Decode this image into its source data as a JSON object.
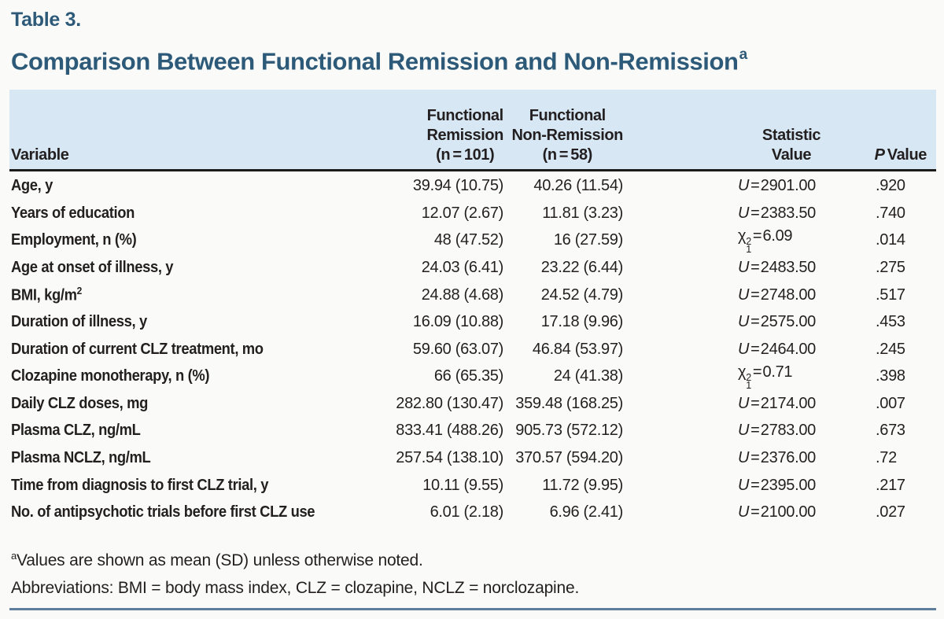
{
  "page": {
    "eyebrow": "Table 3.",
    "title": "Comparison Between Functional Remission and Non-Remission",
    "title_sup": "a"
  },
  "table": {
    "headers": {
      "variable": "Variable",
      "remission": "Functional\nRemission\n(n = 101)",
      "non_remission": "Functional\nNon-Remission\n(n = 58)",
      "statistic": "Statistic\nValue",
      "p_italic": "P",
      "p_rest": " Value"
    },
    "rows": [
      {
        "label": "Age, y",
        "label_sup": "",
        "rem": "39.94 (10.75)",
        "nonrem": "40.26 (11.54)",
        "stat": {
          "sym": "U",
          "italic": true,
          "sup": "",
          "sub": "",
          "rest": "= 2901.00"
        },
        "p": ".920"
      },
      {
        "label": "Years of education",
        "label_sup": "",
        "rem": "12.07 (2.67)",
        "nonrem": "11.81 (3.23)",
        "stat": {
          "sym": "U",
          "italic": true,
          "sup": "",
          "sub": "",
          "rest": "= 2383.50"
        },
        "p": ".740"
      },
      {
        "label": "Employment, n (%)",
        "label_sup": "",
        "rem": "48 (47.52)",
        "nonrem": "16 (27.59)",
        "stat": {
          "sym": "χ",
          "italic": false,
          "sup": "2",
          "sub": "1",
          "rest": "= 6.09"
        },
        "p": ".014"
      },
      {
        "label": "Age at onset of illness, y",
        "label_sup": "",
        "rem": "24.03 (6.41)",
        "nonrem": "23.22 (6.44)",
        "stat": {
          "sym": "U",
          "italic": true,
          "sup": "",
          "sub": "",
          "rest": "= 2483.50"
        },
        "p": ".275"
      },
      {
        "label": "BMI, kg/m",
        "label_sup": "2",
        "rem": "24.88 (4.68)",
        "nonrem": "24.52 (4.79)",
        "stat": {
          "sym": "U",
          "italic": true,
          "sup": "",
          "sub": "",
          "rest": "= 2748.00"
        },
        "p": ".517"
      },
      {
        "label": "Duration of illness, y",
        "label_sup": "",
        "rem": "16.09 (10.88)",
        "nonrem": "17.18 (9.96)",
        "stat": {
          "sym": "U",
          "italic": true,
          "sup": "",
          "sub": "",
          "rest": "= 2575.00"
        },
        "p": ".453"
      },
      {
        "label": "Duration of current CLZ treatment, mo",
        "label_sup": "",
        "rem": "59.60 (63.07)",
        "nonrem": "46.84 (53.97)",
        "stat": {
          "sym": "U",
          "italic": true,
          "sup": "",
          "sub": "",
          "rest": "= 2464.00"
        },
        "p": ".245"
      },
      {
        "label": "Clozapine monotherapy, n (%)",
        "label_sup": "",
        "rem": "66 (65.35)",
        "nonrem": "24 (41.38)",
        "stat": {
          "sym": "χ",
          "italic": false,
          "sup": "2",
          "sub": "1",
          "rest": "= 0.71"
        },
        "p": ".398"
      },
      {
        "label": "Daily CLZ doses, mg",
        "label_sup": "",
        "rem": "282.80 (130.47)",
        "nonrem": "359.48 (168.25)",
        "stat": {
          "sym": "U",
          "italic": true,
          "sup": "",
          "sub": "",
          "rest": "= 2174.00"
        },
        "p": ".007"
      },
      {
        "label": "Plasma CLZ, ng/mL",
        "label_sup": "",
        "rem": "833.41 (488.26)",
        "nonrem": "905.73 (572.12)",
        "stat": {
          "sym": "U",
          "italic": true,
          "sup": "",
          "sub": "",
          "rest": "= 2783.00"
        },
        "p": ".673"
      },
      {
        "label": "Plasma NCLZ, ng/mL",
        "label_sup": "",
        "rem": "257.54 (138.10)",
        "nonrem": "370.57 (594.20)",
        "stat": {
          "sym": "U",
          "italic": true,
          "sup": "",
          "sub": "",
          "rest": "= 2376.00"
        },
        "p": ".72"
      },
      {
        "label": "Time from diagnosis to first CLZ trial, y",
        "label_sup": "",
        "rem": "10.11 (9.55)",
        "nonrem": "11.72 (9.95)",
        "stat": {
          "sym": "U",
          "italic": true,
          "sup": "",
          "sub": "",
          "rest": "= 2395.00"
        },
        "p": ".217"
      },
      {
        "label": "No. of antipsychotic trials before first CLZ use",
        "label_sup": "",
        "rem": "6.01 (2.18)",
        "nonrem": "6.96 (2.41)",
        "stat": {
          "sym": "U",
          "italic": true,
          "sup": "",
          "sub": "",
          "rest": "= 2100.00"
        },
        "p": ".027"
      }
    ]
  },
  "footnotes": {
    "sup": "a",
    "line1": "Values are shown as mean (SD) unless otherwise noted.",
    "line2": "Abbreviations: BMI = body mass index, CLZ = clozapine, NCLZ = norclozapine."
  },
  "colors": {
    "accent_blue": "#2e5a79",
    "header_band": "#d7e8f4",
    "header_rule": "#1b1b1b",
    "bottom_rule": "#5f7e9c",
    "text": "#231f20",
    "background": "#fafbf8"
  }
}
